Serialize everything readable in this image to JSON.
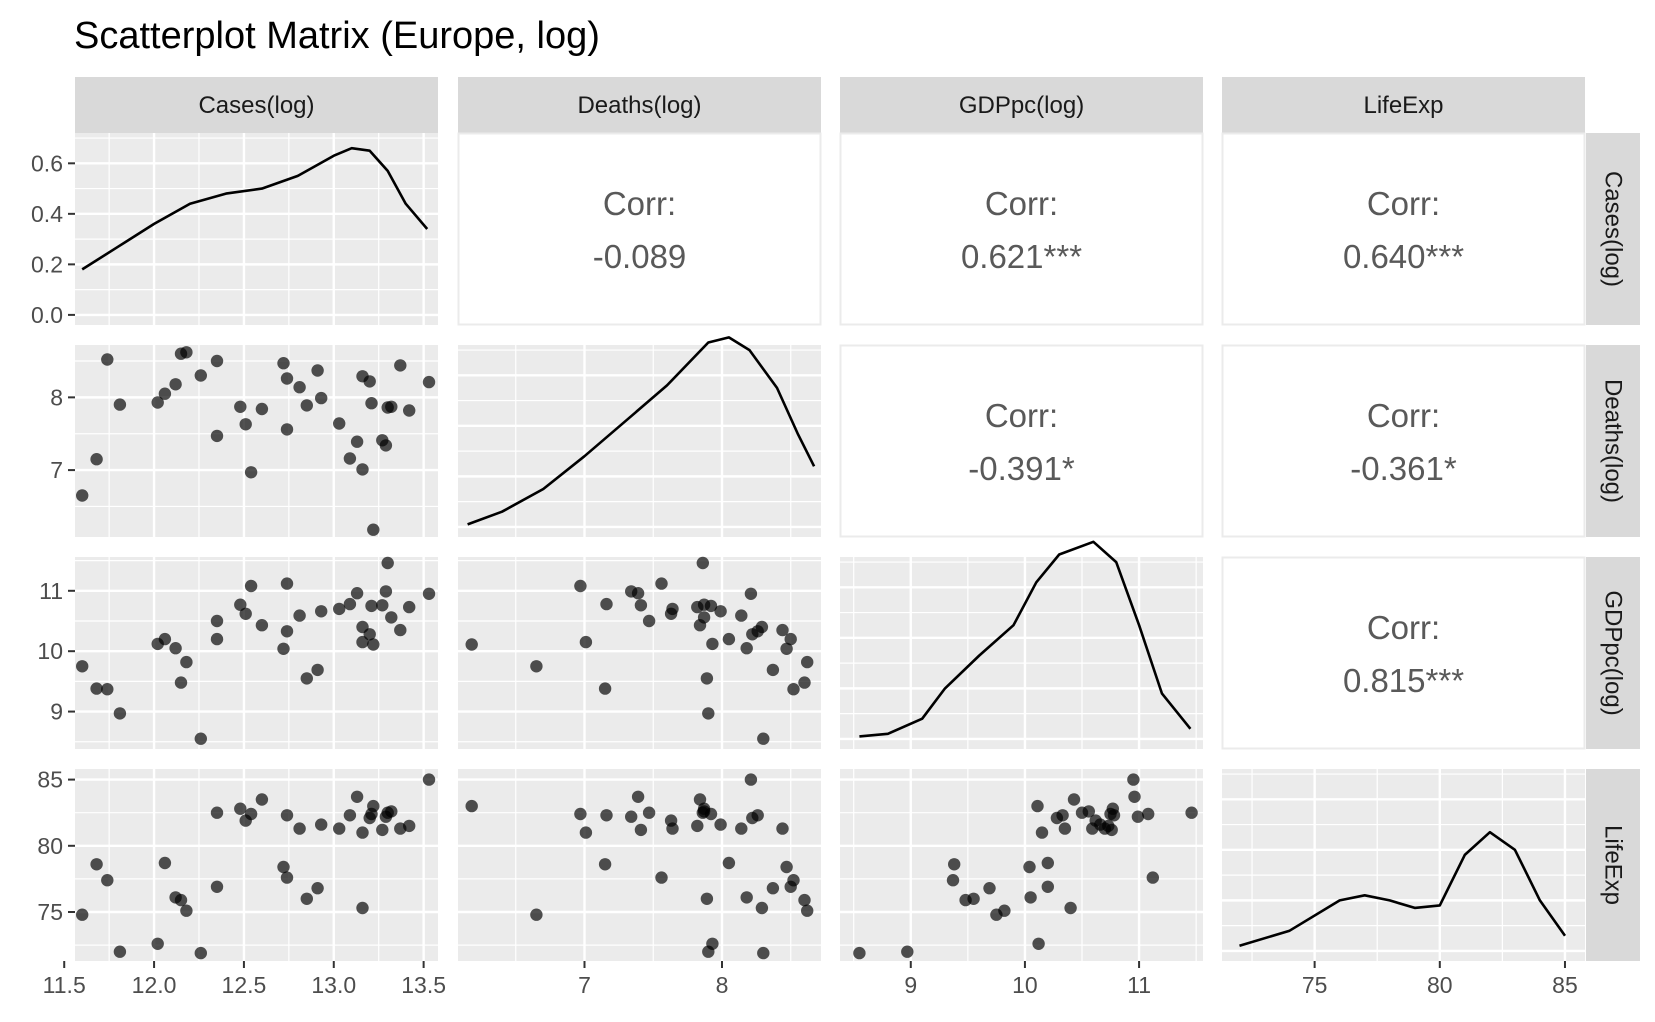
{
  "title": "Scatterplot Matrix (Europe, log)",
  "chart_data": {
    "type": "scatter",
    "title": "Scatterplot Matrix (Europe, log)",
    "variables": [
      "Cases(log)",
      "Deaths(log)",
      "GDPpc(log)",
      "LifeExp"
    ],
    "axis_ranges": {
      "Cases(log)": [
        11.56,
        13.58
      ],
      "Deaths(log)": [
        6.08,
        8.72
      ],
      "GDPpc(log)": [
        8.38,
        11.56
      ],
      "LifeExp": [
        71.3,
        85.8
      ]
    },
    "tick_labels": {
      "Cases(log)": [
        "11.5",
        "12.0",
        "12.5",
        "13.0",
        "13.5"
      ],
      "Deaths(log)": [
        "7",
        "8"
      ],
      "GDPpc(log)": [
        "9",
        "10",
        "11"
      ],
      "LifeExp": [
        "75",
        "80",
        "85"
      ]
    },
    "tick_values": {
      "Cases(log)": [
        11.5,
        12.0,
        12.5,
        13.0,
        13.5
      ],
      "Deaths(log)": [
        7,
        8
      ],
      "GDPpc(log)": [
        9,
        10,
        11
      ],
      "LifeExp": [
        75,
        80,
        85
      ]
    },
    "density_axis": {
      "range": [
        -0.04,
        0.72
      ],
      "ticks": [
        0.0,
        0.2,
        0.4,
        0.6
      ],
      "tick_labels": [
        "0.0",
        "0.2",
        "0.4",
        "0.6"
      ]
    },
    "densities": {
      "Cases(log)": [
        [
          11.6,
          0.18
        ],
        [
          11.8,
          0.27
        ],
        [
          12.0,
          0.36
        ],
        [
          12.2,
          0.44
        ],
        [
          12.4,
          0.48
        ],
        [
          12.6,
          0.5
        ],
        [
          12.8,
          0.55
        ],
        [
          13.0,
          0.63
        ],
        [
          13.1,
          0.66
        ],
        [
          13.2,
          0.65
        ],
        [
          13.3,
          0.57
        ],
        [
          13.4,
          0.44
        ],
        [
          13.52,
          0.34
        ]
      ],
      "Deaths(log)": [
        [
          6.15,
          0.01
        ],
        [
          6.4,
          0.06
        ],
        [
          6.7,
          0.15
        ],
        [
          7.0,
          0.28
        ],
        [
          7.3,
          0.42
        ],
        [
          7.6,
          0.56
        ],
        [
          7.9,
          0.73
        ],
        [
          8.05,
          0.75
        ],
        [
          8.2,
          0.7
        ],
        [
          8.4,
          0.55
        ],
        [
          8.55,
          0.37
        ],
        [
          8.67,
          0.24
        ]
      ],
      "GDPpc(log)": [
        [
          8.55,
          0.01
        ],
        [
          8.8,
          0.02
        ],
        [
          9.1,
          0.08
        ],
        [
          9.3,
          0.2
        ],
        [
          9.6,
          0.33
        ],
        [
          9.9,
          0.45
        ],
        [
          10.1,
          0.62
        ],
        [
          10.3,
          0.73
        ],
        [
          10.6,
          0.78
        ],
        [
          10.8,
          0.7
        ],
        [
          11.0,
          0.45
        ],
        [
          11.2,
          0.18
        ],
        [
          11.45,
          0.04
        ]
      ],
      "LifeExp": [
        [
          72.0,
          0.02
        ],
        [
          74.0,
          0.08
        ],
        [
          76.0,
          0.2
        ],
        [
          77.0,
          0.22
        ],
        [
          78.0,
          0.2
        ],
        [
          79.0,
          0.17
        ],
        [
          80.0,
          0.18
        ],
        [
          81.0,
          0.38
        ],
        [
          82.0,
          0.47
        ],
        [
          83.0,
          0.4
        ],
        [
          84.0,
          0.2
        ],
        [
          85.0,
          0.06
        ]
      ]
    },
    "correlations": [
      {
        "row": 0,
        "col": 1,
        "label": "Corr:",
        "value": "-0.089"
      },
      {
        "row": 0,
        "col": 2,
        "label": "Corr:",
        "value": "0.621***"
      },
      {
        "row": 0,
        "col": 3,
        "label": "Corr:",
        "value": "0.640***"
      },
      {
        "row": 1,
        "col": 2,
        "label": "Corr:",
        "value": "-0.391*"
      },
      {
        "row": 1,
        "col": 3,
        "label": "Corr:",
        "value": "-0.361*"
      },
      {
        "row": 2,
        "col": 3,
        "label": "Corr:",
        "value": "0.815***"
      }
    ],
    "observations": [
      [
        11.6,
        6.65,
        9.75,
        74.8
      ],
      [
        11.68,
        7.15,
        9.38,
        78.6
      ],
      [
        11.74,
        8.52,
        9.37,
        77.4
      ],
      [
        11.81,
        7.9,
        8.97,
        72.0
      ],
      [
        12.02,
        7.93,
        10.12,
        72.6
      ],
      [
        12.06,
        8.05,
        10.2,
        78.7
      ],
      [
        12.12,
        8.18,
        10.05,
        76.1
      ],
      [
        12.15,
        8.6,
        9.48,
        75.9
      ],
      [
        12.18,
        8.62,
        9.82,
        75.1
      ],
      [
        12.26,
        8.3,
        8.55,
        71.9
      ],
      [
        12.35,
        8.5,
        10.2,
        76.9
      ],
      [
        12.35,
        7.47,
        10.5,
        82.5
      ],
      [
        12.48,
        7.87,
        10.77,
        82.8
      ],
      [
        12.51,
        7.63,
        10.62,
        81.9
      ],
      [
        12.54,
        6.97,
        11.08,
        82.4
      ],
      [
        12.6,
        7.84,
        10.43,
        83.5
      ],
      [
        12.72,
        8.47,
        10.04,
        78.4
      ],
      [
        12.74,
        7.56,
        11.12,
        77.6
      ],
      [
        12.74,
        8.26,
        10.33,
        82.3
      ],
      [
        12.81,
        8.14,
        10.59,
        81.3
      ],
      [
        12.85,
        7.89,
        9.55,
        76.0
      ],
      [
        12.91,
        8.37,
        9.69,
        76.8
      ],
      [
        12.93,
        7.99,
        10.66,
        81.6
      ],
      [
        13.03,
        7.64,
        10.7,
        81.3
      ],
      [
        13.09,
        7.16,
        10.78,
        82.3
      ],
      [
        13.13,
        7.39,
        10.96,
        83.7
      ],
      [
        13.16,
        8.29,
        10.4,
        75.3
      ],
      [
        13.16,
        7.01,
        10.15,
        81.0
      ],
      [
        13.2,
        8.22,
        10.28,
        82.1
      ],
      [
        13.21,
        7.92,
        10.75,
        82.4
      ],
      [
        13.22,
        6.18,
        10.11,
        83.0
      ],
      [
        13.27,
        7.41,
        10.76,
        81.2
      ],
      [
        13.29,
        7.34,
        10.99,
        82.2
      ],
      [
        13.3,
        7.86,
        11.46,
        82.5
      ],
      [
        13.32,
        7.87,
        10.56,
        82.6
      ],
      [
        13.37,
        8.44,
        10.35,
        81.3
      ],
      [
        13.42,
        7.82,
        10.73,
        81.5
      ],
      [
        13.53,
        8.21,
        10.95,
        85.0
      ]
    ]
  }
}
